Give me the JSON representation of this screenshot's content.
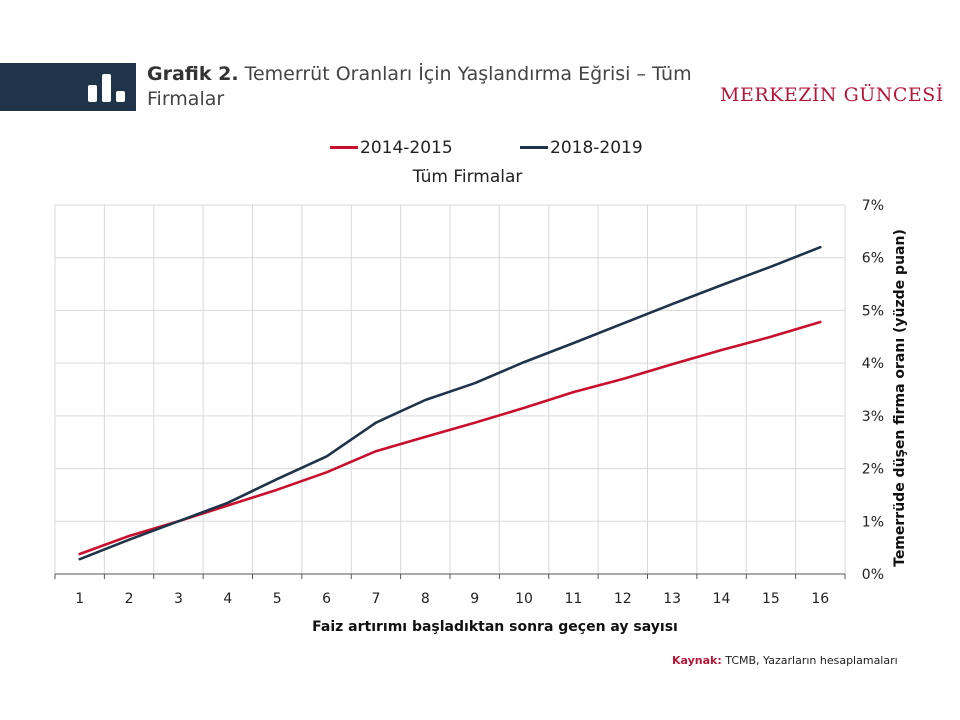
{
  "header": {
    "title_prefix": "Grafik 2.",
    "title_text": "Temerrüt Oranları İçin Yaşlandırma Eğrisi – Tüm Firmalar",
    "brand": "MERKEZİN GÜNCESİ",
    "icon": "bar-chart-icon"
  },
  "colors": {
    "header_bar": "#1f3349",
    "brand": "#b5173a",
    "series_2014": "#c8102e",
    "series_2018": "#1f3349"
  },
  "chart_data": {
    "type": "line",
    "title": "Tüm Firmalar",
    "xlabel": "Faiz artırımı başladıktan sonra geçen ay sayısı",
    "ylabel": "Temerrüde düşen firma oranı (yüzde puan)",
    "x": [
      1,
      2,
      3,
      4,
      5,
      6,
      7,
      8,
      9,
      10,
      11,
      12,
      13,
      14,
      15,
      16
    ],
    "x_tick_labels": [
      "1",
      "2",
      "3",
      "4",
      "5",
      "6",
      "7",
      "8",
      "9",
      "10",
      "11",
      "12",
      "13",
      "14",
      "15",
      "16"
    ],
    "y_tick_labels": [
      "0%",
      "1%",
      "2%",
      "3%",
      "4%",
      "5%",
      "6%",
      "7%"
    ],
    "ylim": [
      0,
      7
    ],
    "y_axis_side": "right",
    "grid": true,
    "legend_position": "top-center",
    "series": [
      {
        "name": "2014-2015",
        "color": "#c8102e",
        "values": [
          0.38,
          0.72,
          1.0,
          1.3,
          1.6,
          1.93,
          2.33,
          2.6,
          2.87,
          3.15,
          3.45,
          3.7,
          3.98,
          4.25,
          4.5,
          4.78
        ]
      },
      {
        "name": "2018-2019",
        "color": "#1f3349",
        "values": [
          0.28,
          0.65,
          1.0,
          1.35,
          1.8,
          2.23,
          2.87,
          3.3,
          3.62,
          4.02,
          4.38,
          4.75,
          5.12,
          5.48,
          5.83,
          6.2
        ]
      }
    ]
  },
  "source": {
    "prefix": "Kaynak:",
    "text": "TCMB, Yazarların hesaplamaları"
  }
}
